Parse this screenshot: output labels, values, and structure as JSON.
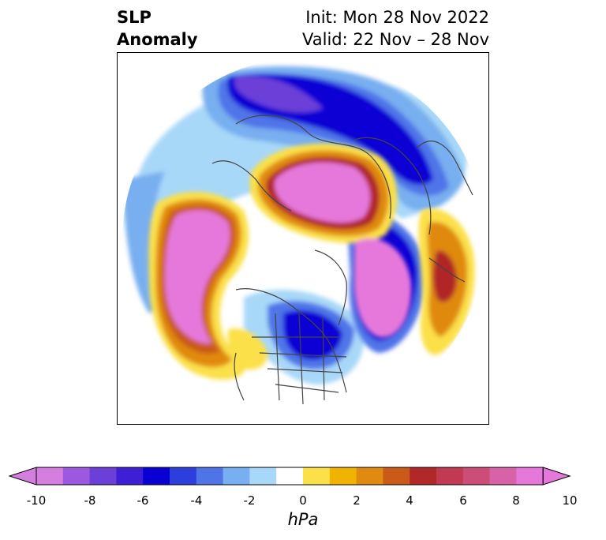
{
  "title": {
    "left_line1": "SLP",
    "left_line2": "Anomaly",
    "right_line1": "Init: Mon 28 Nov 2022",
    "right_line2": "Valid: 22 Nov – 28 Nov"
  },
  "colorbar": {
    "units": "hPa",
    "ticks": [
      "-10",
      "-8",
      "-6",
      "-4",
      "-2",
      "0",
      "2",
      "4",
      "6",
      "8",
      "10"
    ],
    "colors": [
      "#d47ee0",
      "#9c58e0",
      "#6c3fd8",
      "#3e1fd6",
      "#0a00d4",
      "#2c3edc",
      "#4f74e8",
      "#78aff0",
      "#a8d8f8",
      "#ffffff",
      "#fbe04a",
      "#f0b400",
      "#e08a10",
      "#c95a18",
      "#b02828",
      "#c23a52",
      "#cc4e78",
      "#d862a8",
      "#e678dc"
    ]
  },
  "map": {
    "projection": "north-polar-stereographic",
    "colors": {
      "neg_light": "#a8d8f8",
      "neg_mid": "#78aff0",
      "neg_blue": "#4f74e8",
      "neg_deep": "#0a00d4",
      "neg_purple": "#6c3fd8",
      "pos_yellow": "#fbe04a",
      "pos_gold": "#f0b400",
      "pos_orange": "#e08a10",
      "pos_red": "#b02828",
      "pos_rose": "#cc4e78",
      "pos_magenta": "#e678dc",
      "coast": "#444444"
    }
  }
}
